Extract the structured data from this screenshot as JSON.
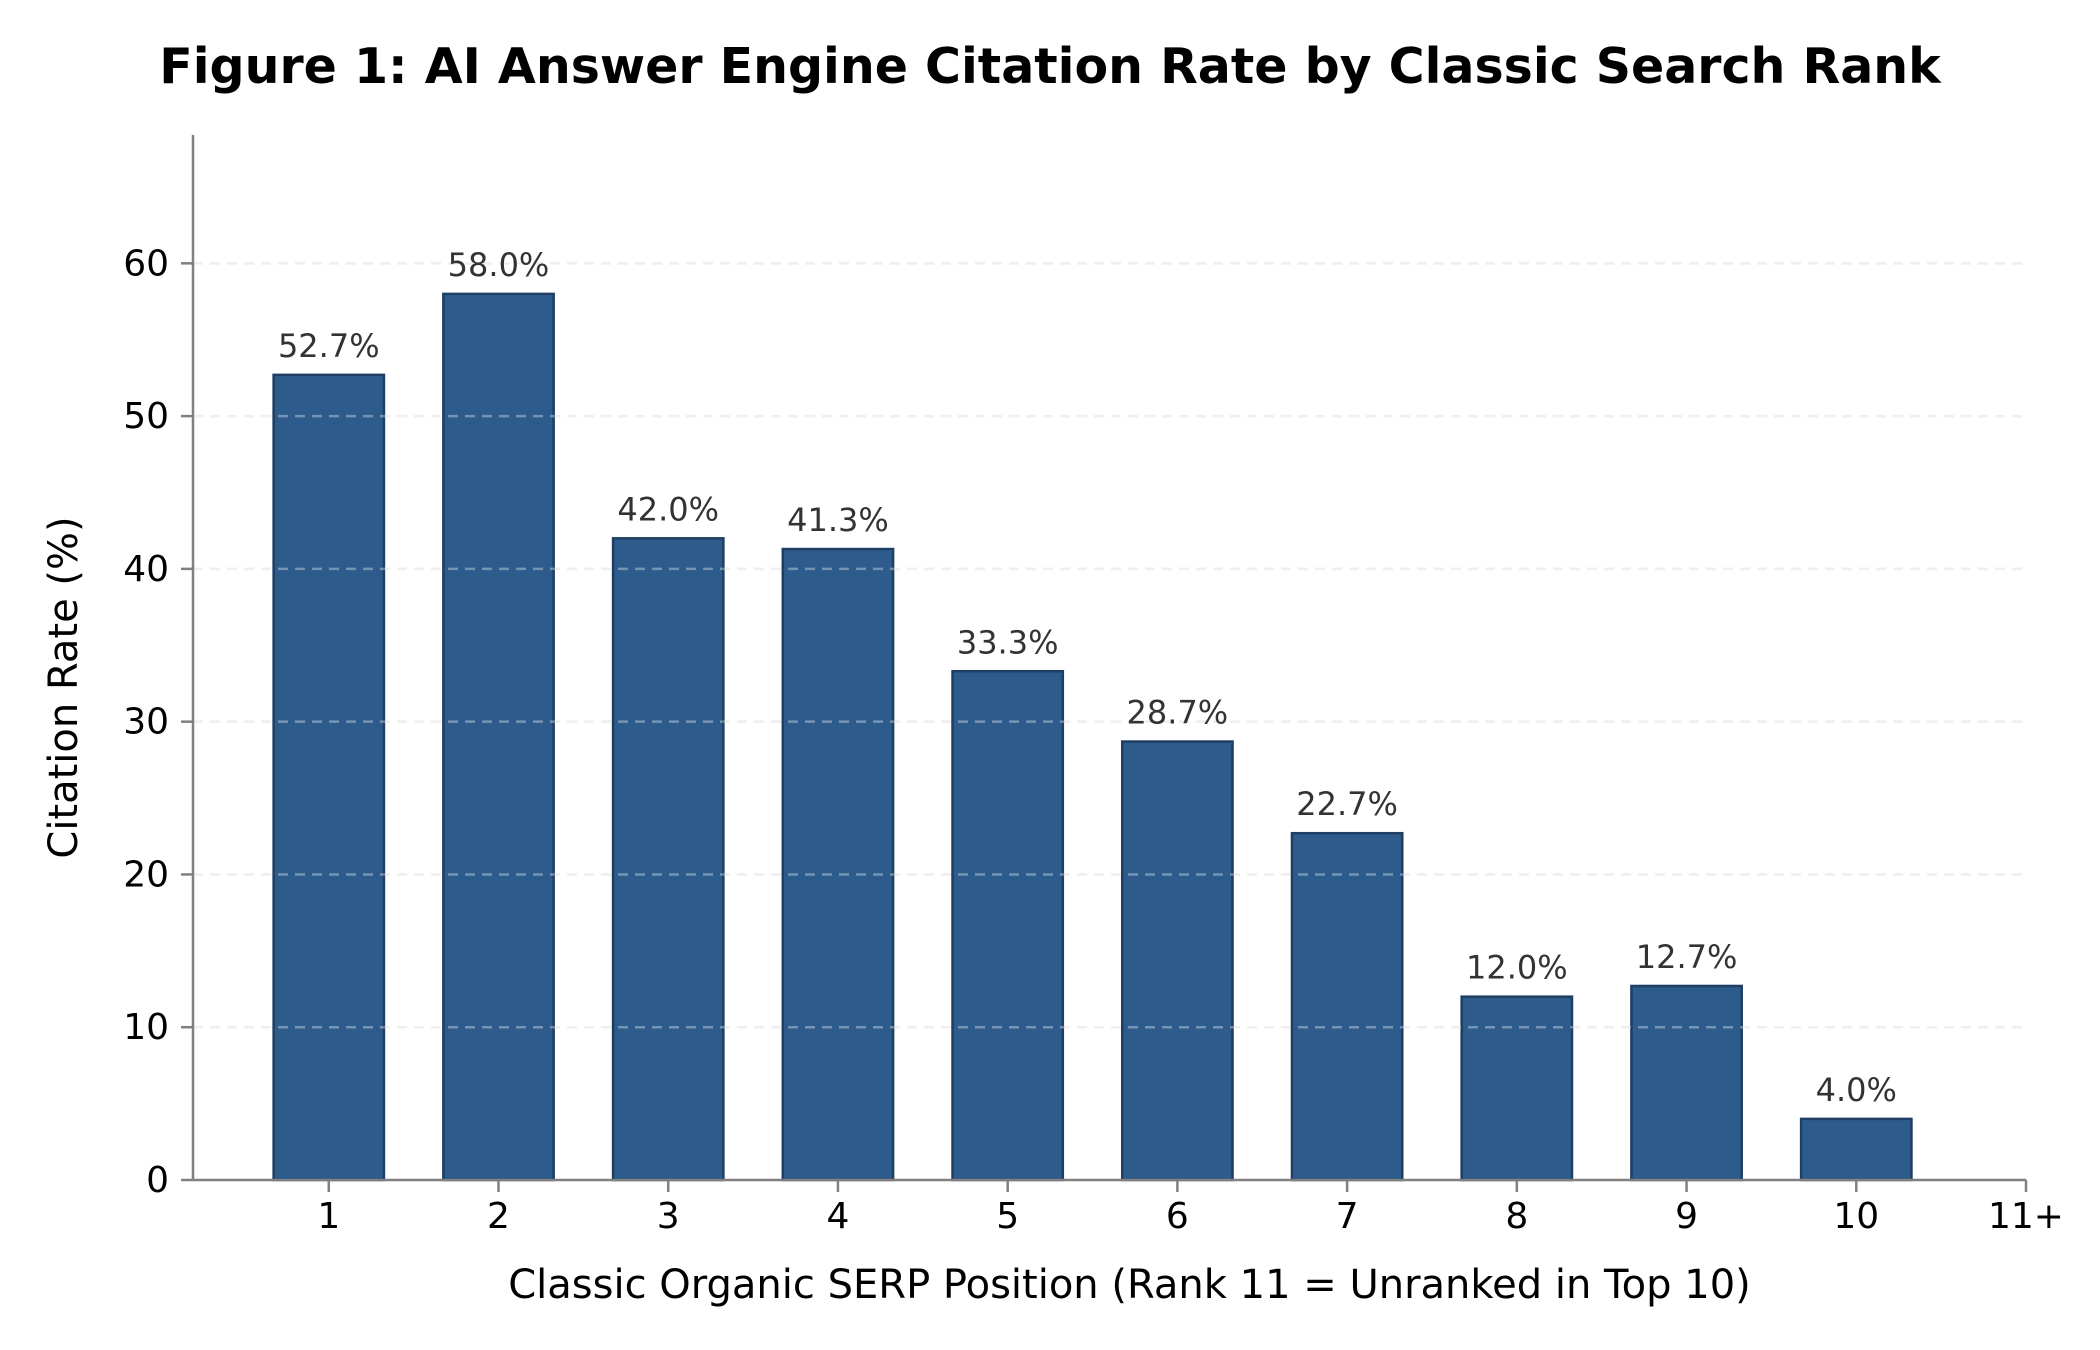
{
  "chart_data": {
    "type": "bar",
    "title": "Figure 1: AI Answer Engine Citation Rate by Classic Search Rank",
    "xlabel": "Classic Organic SERP Position (Rank 11 = Unranked in Top 10)",
    "ylabel": "Citation Rate (%)",
    "categories": [
      "1",
      "2",
      "3",
      "4",
      "5",
      "6",
      "7",
      "8",
      "9",
      "10"
    ],
    "x_tick_labels": [
      "1",
      "2",
      "3",
      "4",
      "5",
      "6",
      "7",
      "8",
      "9",
      "10",
      "11+"
    ],
    "values": [
      52.7,
      58.0,
      42.0,
      41.3,
      33.3,
      28.7,
      22.7,
      12.0,
      12.7,
      4.0
    ],
    "data_labels": [
      "52.7%",
      "58.0%",
      "42.0%",
      "41.3%",
      "33.3%",
      "28.7%",
      "22.7%",
      "12.0%",
      "12.7%",
      "4.0%"
    ],
    "y_ticks": [
      0,
      10,
      20,
      30,
      40,
      50,
      60
    ],
    "ylim": [
      0,
      68.4
    ],
    "xlim": [
      0.2,
      11
    ],
    "grid": "y-dashed",
    "legend": "none",
    "colors": {
      "bar": "#2c5b8c",
      "bar_edge": "#1e3f63",
      "axis": "#808080",
      "grid": "#e6e6e6",
      "text": "#000000",
      "data_label": "#333333"
    }
  }
}
